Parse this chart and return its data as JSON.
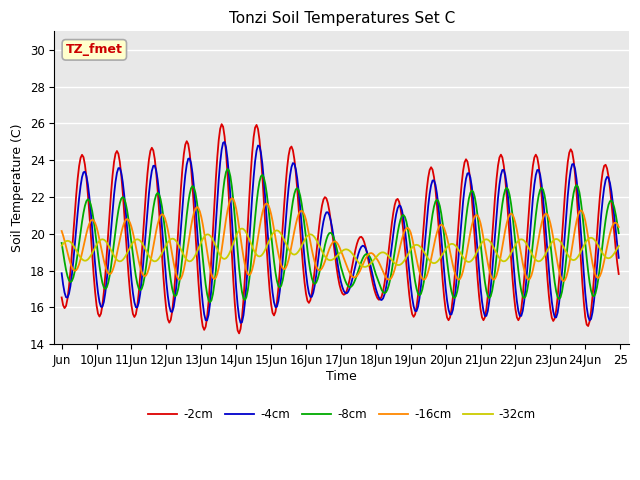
{
  "title": "Tonzi Soil Temperatures Set C",
  "xlabel": "Time",
  "ylabel": "Soil Temperature (C)",
  "ylim": [
    14,
    31
  ],
  "annotation_text": "TZ_fmet",
  "annotation_color": "#cc0000",
  "annotation_bg": "#ffffcc",
  "annotation_border": "#aaaaaa",
  "bg_color": "#e8e8e8",
  "grid_color": "white",
  "colors": {
    "-2cm": "#dd0000",
    "-4cm": "#0000cc",
    "-8cm": "#00aa00",
    "-16cm": "#ff8800",
    "-32cm": "#cccc00"
  },
  "xtick_labels": [
    "Jun",
    "10Jun",
    "11Jun",
    "12Jun",
    "13Jun",
    "14Jun",
    "15Jun",
    "16Jun",
    "17Jun",
    "18Jun",
    "19Jun",
    "20Jun",
    "21Jun",
    "22Jun",
    "23Jun",
    "24Jun",
    "25"
  ],
  "legend_labels": [
    "-2cm",
    "-4cm",
    "-8cm",
    "-16cm",
    "-32cm"
  ]
}
